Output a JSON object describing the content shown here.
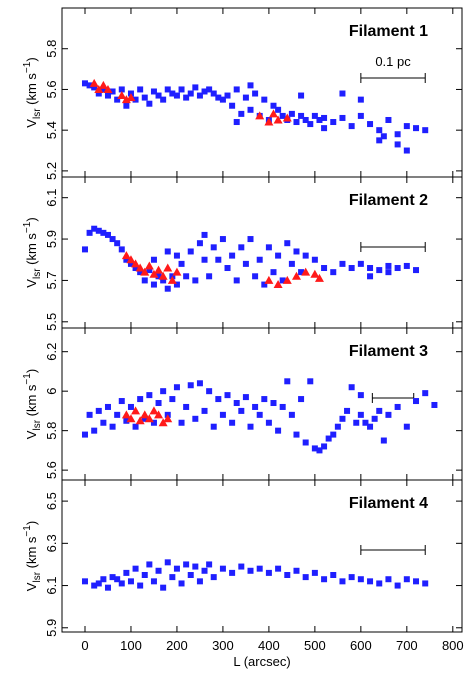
{
  "chart_data": [
    {
      "type": "scatter",
      "title": "Filament 1",
      "y_label": [
        "V",
        "lsr",
        " (km s",
        "−1",
        ")"
      ],
      "xlim": [
        -50,
        820
      ],
      "xticks": [
        0,
        100,
        200,
        300,
        400,
        500,
        600,
        700,
        800
      ],
      "ylim": [
        5.17,
        6.0
      ],
      "yticks": [
        5.2,
        5.4,
        5.6,
        5.8
      ],
      "scale_bar": [
        600,
        740
      ],
      "scale_bar_label": "0.1 pc",
      "series": [
        {
          "color": "#1f1fff",
          "marker": "square",
          "x": [
            0,
            10,
            20,
            30,
            40,
            50,
            60,
            70,
            80,
            90,
            100,
            110,
            120,
            130,
            140,
            150,
            160,
            170,
            180,
            190,
            200,
            210,
            220,
            230,
            240,
            250,
            260,
            270,
            280,
            290,
            300,
            310,
            320,
            330,
            340,
            350,
            360,
            370,
            380,
            390,
            400,
            410,
            420,
            430,
            440,
            450,
            460,
            470,
            480,
            490,
            500,
            510,
            520,
            540,
            560,
            580,
            600,
            620,
            640,
            660,
            680,
            700,
            720,
            740,
            560,
            600,
            650,
            680,
            700,
            640,
            330,
            360,
            470,
            520
          ],
          "values": [
            5.63,
            5.62,
            5.61,
            5.58,
            5.6,
            5.57,
            5.59,
            5.55,
            5.6,
            5.52,
            5.58,
            5.55,
            5.6,
            5.56,
            5.53,
            5.59,
            5.57,
            5.55,
            5.6,
            5.58,
            5.57,
            5.6,
            5.56,
            5.58,
            5.61,
            5.57,
            5.59,
            5.6,
            5.58,
            5.56,
            5.55,
            5.57,
            5.52,
            5.6,
            5.48,
            5.56,
            5.5,
            5.58,
            5.47,
            5.55,
            5.45,
            5.52,
            5.5,
            5.47,
            5.45,
            5.48,
            5.44,
            5.47,
            5.45,
            5.43,
            5.47,
            5.45,
            5.46,
            5.44,
            5.46,
            5.42,
            5.47,
            5.43,
            5.4,
            5.45,
            5.38,
            5.42,
            5.41,
            5.4,
            5.58,
            5.55,
            5.37,
            5.33,
            5.3,
            5.35,
            5.44,
            5.62,
            5.57,
            5.41
          ]
        },
        {
          "color": "#ff1a1a",
          "marker": "triangle",
          "x": [
            20,
            30,
            40,
            50,
            80,
            90,
            100,
            380,
            400,
            410,
            420,
            440
          ],
          "values": [
            5.63,
            5.6,
            5.62,
            5.6,
            5.57,
            5.55,
            5.56,
            5.47,
            5.44,
            5.48,
            5.45,
            5.46
          ]
        }
      ]
    },
    {
      "type": "scatter",
      "title": "Filament 2",
      "y_label": [
        "V",
        "lsr",
        " (km s",
        "−1",
        ")"
      ],
      "xlim": [
        -50,
        820
      ],
      "xticks": [
        0,
        100,
        200,
        300,
        400,
        500,
        600,
        700,
        800
      ],
      "ylim": [
        5.47,
        6.2
      ],
      "yticks": [
        5.5,
        5.7,
        5.9,
        6.1
      ],
      "scale_bar": [
        600,
        740
      ],
      "series": [
        {
          "color": "#1f1fff",
          "marker": "square",
          "x": [
            0,
            10,
            20,
            30,
            40,
            50,
            60,
            70,
            80,
            90,
            100,
            110,
            120,
            130,
            140,
            150,
            160,
            170,
            180,
            190,
            200,
            210,
            220,
            230,
            240,
            250,
            260,
            270,
            280,
            290,
            300,
            310,
            320,
            330,
            340,
            350,
            360,
            370,
            380,
            390,
            400,
            410,
            420,
            430,
            440,
            450,
            460,
            470,
            480,
            500,
            520,
            540,
            560,
            580,
            600,
            620,
            640,
            660,
            680,
            700,
            720,
            620,
            660,
            260,
            200,
            150,
            180
          ],
          "values": [
            5.85,
            5.93,
            5.95,
            5.94,
            5.93,
            5.92,
            5.9,
            5.88,
            5.85,
            5.8,
            5.78,
            5.76,
            5.74,
            5.7,
            5.75,
            5.68,
            5.72,
            5.7,
            5.66,
            5.72,
            5.68,
            5.78,
            5.72,
            5.84,
            5.7,
            5.88,
            5.8,
            5.72,
            5.86,
            5.8,
            5.9,
            5.76,
            5.82,
            5.7,
            5.86,
            5.78,
            5.9,
            5.72,
            5.8,
            5.68,
            5.86,
            5.74,
            5.82,
            5.7,
            5.88,
            5.78,
            5.84,
            5.74,
            5.82,
            5.8,
            5.76,
            5.74,
            5.78,
            5.76,
            5.78,
            5.76,
            5.75,
            5.74,
            5.76,
            5.77,
            5.75,
            5.72,
            5.77,
            5.92,
            5.82,
            5.8,
            5.84
          ]
        },
        {
          "color": "#ff1a1a",
          "marker": "triangle",
          "x": [
            90,
            100,
            110,
            120,
            130,
            140,
            150,
            160,
            170,
            180,
            190,
            200,
            400,
            420,
            440,
            460,
            480,
            500,
            510
          ],
          "values": [
            5.82,
            5.8,
            5.78,
            5.76,
            5.74,
            5.77,
            5.73,
            5.75,
            5.72,
            5.76,
            5.7,
            5.74,
            5.7,
            5.68,
            5.7,
            5.72,
            5.74,
            5.73,
            5.71
          ]
        }
      ]
    },
    {
      "type": "scatter",
      "title": "Filament 3",
      "y_label": [
        "V",
        "lsr",
        " (km s",
        "−1",
        ")"
      ],
      "xlim": [
        -50,
        820
      ],
      "xticks": [
        0,
        100,
        200,
        300,
        400,
        500,
        600,
        700,
        800
      ],
      "ylim": [
        5.55,
        6.32
      ],
      "yticks": [
        5.6,
        5.8,
        6.0,
        6.2
      ],
      "scale_bar": [
        625,
        715
      ],
      "series": [
        {
          "color": "#1f1fff",
          "marker": "square",
          "x": [
            0,
            10,
            20,
            30,
            40,
            50,
            60,
            70,
            80,
            90,
            100,
            110,
            120,
            130,
            140,
            150,
            160,
            170,
            180,
            190,
            200,
            210,
            220,
            230,
            240,
            250,
            260,
            270,
            280,
            290,
            300,
            310,
            320,
            330,
            340,
            350,
            360,
            370,
            380,
            390,
            400,
            410,
            420,
            430,
            440,
            450,
            460,
            470,
            480,
            490,
            500,
            510,
            520,
            530,
            540,
            550,
            560,
            570,
            580,
            590,
            600,
            610,
            620,
            630,
            640,
            660,
            680,
            700,
            720,
            740,
            760,
            650,
            600
          ],
          "values": [
            5.78,
            5.88,
            5.8,
            5.9,
            5.84,
            5.92,
            5.82,
            5.88,
            5.95,
            5.85,
            5.92,
            5.82,
            5.96,
            5.86,
            5.98,
            5.84,
            5.94,
            6.0,
            5.88,
            5.96,
            6.02,
            5.84,
            5.92,
            6.03,
            5.86,
            6.04,
            5.9,
            6.0,
            5.82,
            5.96,
            5.88,
            5.98,
            5.84,
            5.94,
            5.9,
            5.97,
            5.82,
            5.92,
            5.88,
            5.96,
            5.84,
            5.94,
            5.8,
            5.92,
            6.05,
            5.88,
            5.78,
            5.96,
            5.74,
            6.05,
            5.71,
            5.7,
            5.72,
            5.76,
            5.78,
            5.82,
            5.86,
            5.9,
            6.02,
            5.84,
            5.88,
            5.84,
            5.82,
            5.86,
            5.9,
            5.88,
            5.92,
            5.82,
            5.95,
            5.99,
            5.93,
            5.75,
            5.98
          ]
        },
        {
          "color": "#ff1a1a",
          "marker": "triangle",
          "x": [
            90,
            100,
            110,
            120,
            130,
            140,
            150,
            160,
            170,
            180
          ],
          "values": [
            5.88,
            5.86,
            5.9,
            5.85,
            5.88,
            5.86,
            5.9,
            5.88,
            5.84,
            5.86
          ]
        }
      ]
    },
    {
      "type": "scatter",
      "title": "Filament 4",
      "y_label": [
        "V",
        "lsr",
        " (km s",
        "−1",
        ")"
      ],
      "x_label": "L (arcsec)",
      "xlim": [
        -50,
        820
      ],
      "xticks": [
        0,
        100,
        200,
        300,
        400,
        500,
        600,
        700,
        800
      ],
      "ylim": [
        5.88,
        6.6
      ],
      "yticks": [
        5.9,
        6.1,
        6.3,
        6.5
      ],
      "scale_bar": [
        600,
        740
      ],
      "series": [
        {
          "color": "#1f1fff",
          "marker": "square",
          "x": [
            0,
            20,
            40,
            50,
            60,
            80,
            90,
            100,
            110,
            120,
            130,
            140,
            150,
            160,
            170,
            180,
            190,
            200,
            210,
            220,
            230,
            240,
            250,
            260,
            270,
            280,
            300,
            320,
            340,
            360,
            380,
            400,
            420,
            440,
            460,
            480,
            500,
            520,
            540,
            560,
            580,
            600,
            620,
            640,
            660,
            680,
            700,
            720,
            740,
            30,
            70
          ],
          "values": [
            6.12,
            6.1,
            6.13,
            6.09,
            6.14,
            6.11,
            6.16,
            6.12,
            6.18,
            6.1,
            6.15,
            6.2,
            6.12,
            6.17,
            6.09,
            6.21,
            6.14,
            6.18,
            6.11,
            6.2,
            6.15,
            6.19,
            6.12,
            6.17,
            6.2,
            6.14,
            6.18,
            6.16,
            6.19,
            6.17,
            6.18,
            6.16,
            6.18,
            6.15,
            6.17,
            6.14,
            6.16,
            6.13,
            6.15,
            6.12,
            6.14,
            6.13,
            6.12,
            6.11,
            6.13,
            6.1,
            6.13,
            6.12,
            6.11,
            6.11,
            6.13
          ]
        }
      ]
    }
  ]
}
